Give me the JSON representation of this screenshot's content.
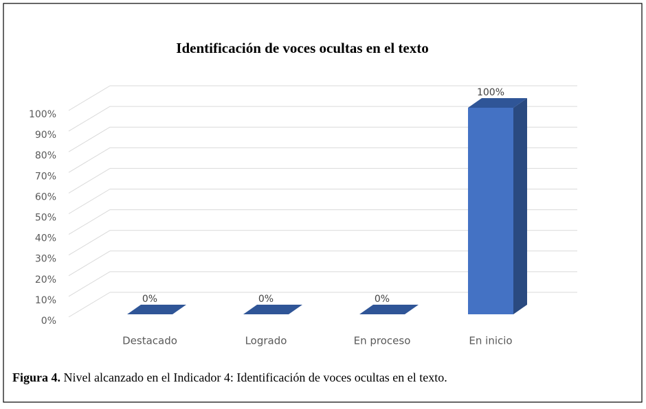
{
  "chart_data": {
    "type": "bar3d",
    "title": "Identificación de voces ocultas en el texto",
    "categories": [
      "Destacado",
      "Logrado",
      "En proceso",
      "En inicio"
    ],
    "values": [
      0,
      0,
      0,
      100
    ],
    "value_labels": [
      "0%",
      "0%",
      "0%",
      "100%"
    ],
    "color": "#4472c4",
    "ylim": [
      0,
      100
    ],
    "yticks": [
      {
        "value": 0,
        "label": "0%"
      },
      {
        "value": 10,
        "label": "10%"
      },
      {
        "value": 20,
        "label": "20%"
      },
      {
        "value": 30,
        "label": "30%"
      },
      {
        "value": 40,
        "label": "40%"
      },
      {
        "value": 50,
        "label": "50%"
      },
      {
        "value": 60,
        "label": "60%"
      },
      {
        "value": 70,
        "label": "70%"
      },
      {
        "value": 80,
        "label": "80%"
      },
      {
        "value": 90,
        "label": "90%"
      },
      {
        "value": 100,
        "label": "100%"
      }
    ],
    "grid": true,
    "caption_label": "Figura 4.",
    "caption": "Nivel alcanzado en el Indicador 4: Identificación de voces ocultas en el texto."
  }
}
